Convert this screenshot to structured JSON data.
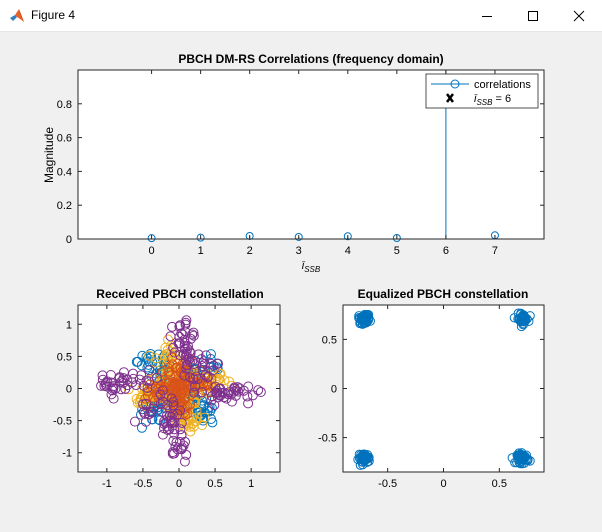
{
  "window": {
    "title": "Figure 4",
    "icons": [
      "matlab-icon",
      "minimize-icon",
      "maximize-icon",
      "close-icon"
    ]
  },
  "colors": {
    "blue": "#0072bd",
    "orange": "#d95319",
    "yellow": "#edb120",
    "purple": "#7e2f8e",
    "figure_bg": "#f0f0f0",
    "axes_bg": "#ffffff"
  },
  "chart_data": [
    {
      "type": "stem",
      "title": "PBCH DM-RS Correlations (frequency domain)",
      "ylabel": "Magnitude",
      "xlabel": "ī_SSB",
      "xlim": [
        -1.5,
        8
      ],
      "ylim": [
        0,
        1
      ],
      "xticks": [
        0,
        1,
        2,
        3,
        4,
        5,
        6,
        7
      ],
      "xticklabels": [
        "0",
        "1",
        "2",
        "3",
        "4",
        "5",
        "6",
        "7"
      ],
      "yticks": [
        0,
        0.2,
        0.4,
        0.6,
        0.8
      ],
      "yticklabels": [
        "0",
        "0.2",
        "0.4",
        "0.6",
        "0.8"
      ],
      "grid": false,
      "legend": {
        "location": "top-right",
        "entries": [
          {
            "label": "correlations",
            "marker": "circle-stem"
          },
          {
            "label": "ī_SSB = 6",
            "marker": "x"
          }
        ]
      },
      "series": [
        {
          "name": "correlations",
          "x": [
            0,
            1,
            2,
            3,
            4,
            5,
            6,
            7
          ],
          "y": [
            0.005,
            0.008,
            0.018,
            0.012,
            0.016,
            0.006,
            1.0,
            0.022
          ]
        }
      ],
      "highlight": {
        "x": 6,
        "y": 1.0
      }
    },
    {
      "type": "scatter",
      "title": "Received PBCH constellation",
      "xlim": [
        -1.4,
        1.4
      ],
      "ylim": [
        -1.3,
        1.3
      ],
      "xticks": [
        -1,
        -0.5,
        0,
        0.5,
        1
      ],
      "xticklabels": [
        "-1",
        "-0.5",
        "0",
        "0.5",
        "1"
      ],
      "yticks": [
        -1,
        -0.5,
        0,
        0.5,
        1
      ],
      "yticklabels": [
        "-1",
        "-0.5",
        "0",
        "0.5",
        "1"
      ],
      "grid": false,
      "series": [
        {
          "color": "blue",
          "clusters": [
            {
              "arm_from": [
                0.0,
                0.0
              ],
              "arm_to": [
                0.45,
                0.45
              ],
              "spread": 0.09,
              "n": 45
            },
            {
              "arm_from": [
                0.0,
                0.0
              ],
              "arm_to": [
                -0.45,
                0.45
              ],
              "spread": 0.09,
              "n": 45
            },
            {
              "arm_from": [
                0.0,
                0.0
              ],
              "arm_to": [
                0.45,
                -0.45
              ],
              "spread": 0.09,
              "n": 45
            },
            {
              "arm_from": [
                0.0,
                0.0
              ],
              "arm_to": [
                -0.45,
                -0.45
              ],
              "spread": 0.09,
              "n": 45
            }
          ]
        },
        {
          "color": "yellow",
          "clusters": [
            {
              "arm_from": [
                0.05,
                0.05
              ],
              "arm_to": [
                0.6,
                0.15
              ],
              "spread": 0.09,
              "n": 55
            },
            {
              "arm_from": [
                -0.05,
                0.05
              ],
              "arm_to": [
                -0.15,
                0.6
              ],
              "spread": 0.09,
              "n": 55
            },
            {
              "arm_from": [
                -0.05,
                -0.05
              ],
              "arm_to": [
                -0.6,
                -0.15
              ],
              "spread": 0.09,
              "n": 55
            },
            {
              "arm_from": [
                0.05,
                -0.05
              ],
              "arm_to": [
                0.15,
                -0.6
              ],
              "spread": 0.09,
              "n": 55
            }
          ]
        },
        {
          "color": "orange",
          "clusters": [
            {
              "arm_from": [
                0.0,
                0.0
              ],
              "arm_to": [
                0.4,
                0.05
              ],
              "spread": 0.08,
              "n": 35
            },
            {
              "arm_from": [
                0.0,
                0.0
              ],
              "arm_to": [
                -0.05,
                0.4
              ],
              "spread": 0.08,
              "n": 35
            },
            {
              "arm_from": [
                0.0,
                0.0
              ],
              "arm_to": [
                -0.4,
                -0.05
              ],
              "spread": 0.08,
              "n": 35
            },
            {
              "arm_from": [
                0.0,
                0.0
              ],
              "arm_to": [
                0.05,
                -0.4
              ],
              "spread": 0.08,
              "n": 35
            }
          ]
        },
        {
          "color": "purple",
          "clusters": [
            {
              "arm_from": [
                0.1,
                0.35
              ],
              "arm_to": [
                0.05,
                1.05
              ],
              "spread": 0.08,
              "n": 40
            },
            {
              "arm_from": [
                -0.35,
                0.1
              ],
              "arm_to": [
                -1.05,
                0.05
              ],
              "spread": 0.08,
              "n": 40
            },
            {
              "arm_from": [
                -0.1,
                -0.35
              ],
              "arm_to": [
                -0.05,
                -1.05
              ],
              "spread": 0.08,
              "n": 40
            },
            {
              "arm_from": [
                0.35,
                -0.1
              ],
              "arm_to": [
                1.05,
                -0.05
              ],
              "spread": 0.08,
              "n": 40
            },
            {
              "arm_from": [
                0.15,
                0.15
              ],
              "arm_to": [
                0.4,
                0.4
              ],
              "spread": 0.1,
              "n": 20
            },
            {
              "arm_from": [
                -0.15,
                -0.15
              ],
              "arm_to": [
                -0.4,
                -0.4
              ],
              "spread": 0.1,
              "n": 20
            }
          ]
        }
      ]
    },
    {
      "type": "scatter",
      "title": "Equalized PBCH constellation",
      "xlim": [
        -0.9,
        0.9
      ],
      "ylim": [
        -0.85,
        0.85
      ],
      "xticks": [
        -0.5,
        0,
        0.5
      ],
      "xticklabels": [
        "-0.5",
        "0",
        "0.5"
      ],
      "yticks": [
        -0.5,
        0,
        0.5
      ],
      "yticklabels": [
        "-0.5",
        "0",
        "0.5"
      ],
      "grid": false,
      "series": [
        {
          "color": "blue",
          "clusters": [
            {
              "center": [
                -0.71,
                0.71
              ],
              "spread": 0.025,
              "n": 45
            },
            {
              "center": [
                0.71,
                0.71
              ],
              "spread": 0.025,
              "n": 45
            },
            {
              "center": [
                -0.71,
                -0.71
              ],
              "spread": 0.025,
              "n": 45
            },
            {
              "center": [
                0.71,
                -0.71
              ],
              "spread": 0.025,
              "n": 45
            }
          ]
        }
      ]
    }
  ]
}
